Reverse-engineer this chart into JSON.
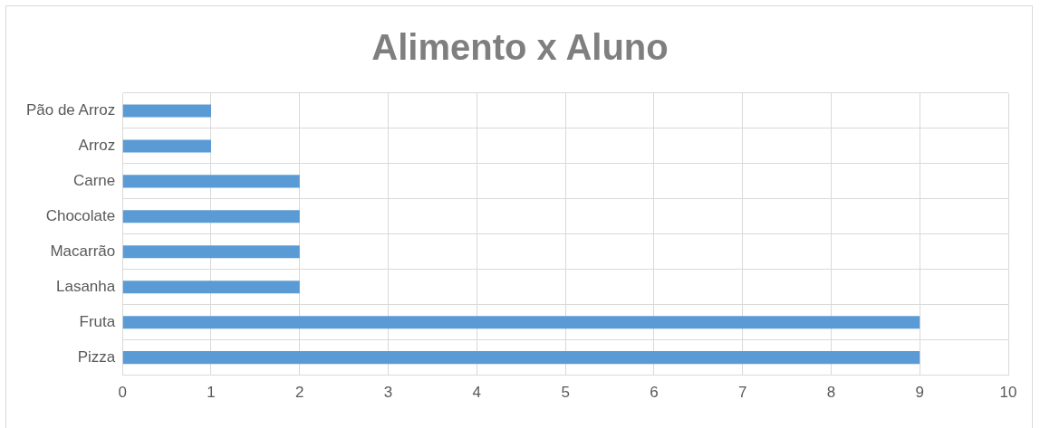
{
  "chart_data": {
    "type": "bar",
    "orientation": "horizontal",
    "title": "Alimento x Aluno",
    "categories": [
      "Pão de Arroz",
      "Arroz",
      "Carne",
      "Chocolate",
      "Macarrão",
      "Lasanha",
      "Fruta",
      "Pizza"
    ],
    "values": [
      1,
      1,
      2,
      2,
      2,
      2,
      9,
      9
    ],
    "color": "#5b9bd5",
    "xlim": [
      0,
      10
    ],
    "xticks": [
      0,
      1,
      2,
      3,
      4,
      5,
      6,
      7,
      8,
      9,
      10
    ],
    "grid": true,
    "legend": false
  }
}
